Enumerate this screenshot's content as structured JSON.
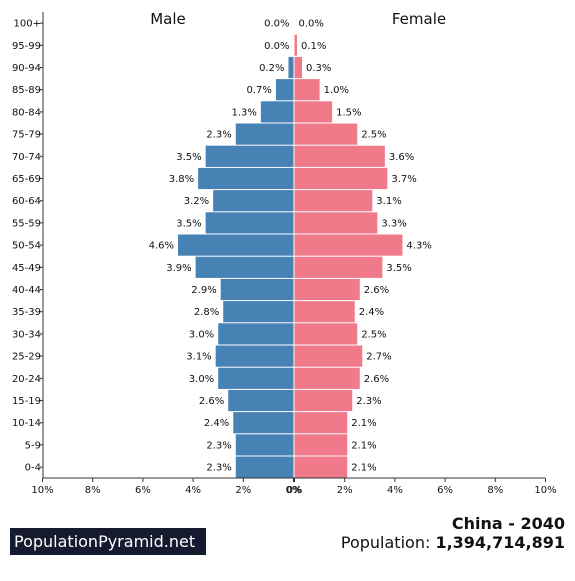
{
  "header": {
    "male_label": "Male",
    "female_label": "Female"
  },
  "footer": {
    "brand": "PopulationPyramid.net",
    "country_year": "China - 2040",
    "population_label": "Population:",
    "population_value": "1,394,714,891"
  },
  "colors": {
    "male": "#4682b4",
    "female": "#f07a8a"
  },
  "chart_data": {
    "type": "bar",
    "orientation": "horizontal-pyramid",
    "categories": [
      "100+",
      "95-99",
      "90-94",
      "85-89",
      "80-84",
      "75-79",
      "70-74",
      "65-69",
      "60-64",
      "55-59",
      "50-54",
      "45-49",
      "40-44",
      "35-39",
      "30-34",
      "25-29",
      "20-24",
      "15-19",
      "10-14",
      "5-9",
      "0-4"
    ],
    "series": [
      {
        "name": "Male",
        "values": [
          0.0,
          0.0,
          0.2,
          0.7,
          1.3,
          2.3,
          3.5,
          3.8,
          3.2,
          3.5,
          4.6,
          3.9,
          2.9,
          2.8,
          3.0,
          3.1,
          3.0,
          2.6,
          2.4,
          2.3,
          2.3
        ],
        "labels": [
          "0.0%",
          "0.0%",
          "0.2%",
          "0.7%",
          "1.3%",
          "2.3%",
          "3.5%",
          "3.8%",
          "3.2%",
          "3.5%",
          "4.6%",
          "3.9%",
          "2.9%",
          "2.8%",
          "3.0%",
          "3.1%",
          "3.0%",
          "2.6%",
          "2.4%",
          "2.3%",
          "2.3%"
        ]
      },
      {
        "name": "Female",
        "values": [
          0.0,
          0.1,
          0.3,
          1.0,
          1.5,
          2.5,
          3.6,
          3.7,
          3.1,
          3.3,
          4.3,
          3.5,
          2.6,
          2.4,
          2.5,
          2.7,
          2.6,
          2.3,
          2.1,
          2.1,
          2.1
        ],
        "labels": [
          "0.0%",
          "0.1%",
          "0.3%",
          "1.0%",
          "1.5%",
          "2.5%",
          "3.6%",
          "3.7%",
          "3.1%",
          "3.3%",
          "4.3%",
          "3.5%",
          "2.6%",
          "2.4%",
          "2.5%",
          "2.7%",
          "2.6%",
          "2.3%",
          "2.1%",
          "2.1%",
          "2.1%"
        ]
      }
    ],
    "xlim": [
      0,
      10
    ],
    "x_ticks_male": [
      "10%",
      "8%",
      "6%",
      "4%",
      "2%",
      "0%"
    ],
    "x_ticks_female": [
      "0%",
      "2%",
      "4%",
      "6%",
      "8%",
      "10%"
    ],
    "grid": false,
    "legend": "none"
  }
}
